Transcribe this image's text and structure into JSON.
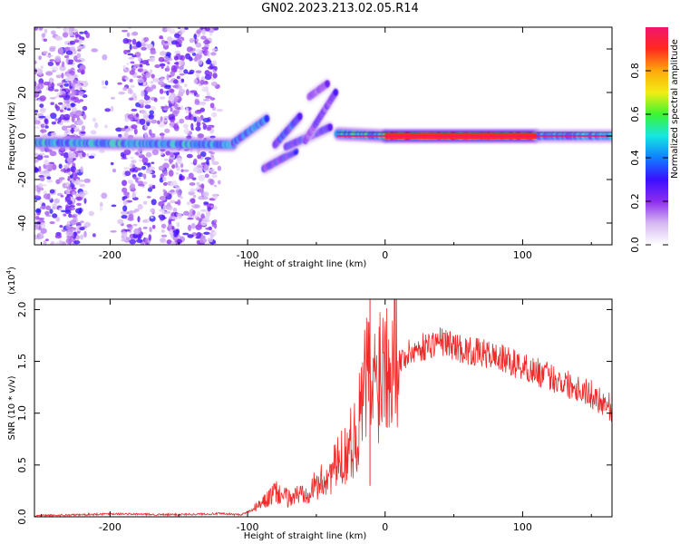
{
  "title": "GN02.2023.213.02.05.R14",
  "chart_data": [
    {
      "type": "heatmap",
      "title": "GN02.2023.213.02.05.R14",
      "xlabel": "Height of straight line (km)",
      "ylabel": "Frequency (Hz)",
      "xlim": [
        -255,
        165
      ],
      "ylim": [
        -50,
        50
      ],
      "x_ticks": [
        -200,
        -100,
        0,
        100
      ],
      "y_ticks": [
        -40,
        -20,
        0,
        20,
        40
      ],
      "colorbar": {
        "label": "Normalized spectral amplitude",
        "range": [
          0,
          1
        ],
        "ticks": [
          0.0,
          0.2,
          0.4,
          0.6,
          0.8
        ],
        "colormap": [
          "#ffffff",
          "#d6b8f2",
          "#8c2cf0",
          "#3a10ff",
          "#0f7fff",
          "#16e7e1",
          "#3cf531",
          "#f2ed14",
          "#ffa80a",
          "#ff2a1d",
          "#f2156d"
        ]
      },
      "ridge_segments": [
        {
          "x": [
            -255,
            -110
          ],
          "y": [
            -3,
            -4
          ],
          "amplitude": 0.55
        },
        {
          "x": [
            -110,
            -86
          ],
          "y": [
            -3,
            8
          ],
          "amplitude": 0.45
        },
        {
          "x": [
            -80,
            -62
          ],
          "y": [
            -4,
            9
          ],
          "amplitude": 0.4
        },
        {
          "x": [
            -88,
            -65
          ],
          "y": [
            -15,
            -7
          ],
          "amplitude": 0.35
        },
        {
          "x": [
            -72,
            -40
          ],
          "y": [
            -5,
            4
          ],
          "amplitude": 0.35
        },
        {
          "x": [
            -58,
            -36
          ],
          "y": [
            -2,
            20
          ],
          "amplitude": 0.3
        },
        {
          "x": [
            -55,
            -42
          ],
          "y": [
            18,
            24
          ],
          "amplitude": 0.25
        },
        {
          "x": [
            -35,
            0
          ],
          "y": [
            1,
            0
          ],
          "amplitude": 0.6
        },
        {
          "x": [
            0,
            110
          ],
          "y": [
            0,
            0
          ],
          "amplitude": 0.95
        },
        {
          "x": [
            110,
            165
          ],
          "y": [
            0,
            0
          ],
          "amplitude": 0.5
        }
      ]
    },
    {
      "type": "line",
      "xlabel": "Height of straight line (km)",
      "ylabel": "SNR (10 * v/v)",
      "y_multiplier": "(x10",
      "y_multiplier_exp": "4",
      "y_multiplier_close": ")",
      "xlim": [
        -255,
        165
      ],
      "ylim": [
        0.0,
        2.1
      ],
      "x_ticks": [
        -200,
        -100,
        0,
        100
      ],
      "y_ticks": [
        "0.0",
        "0.5",
        "1.0",
        "1.5",
        "2.0"
      ],
      "color": "#ee2a2a",
      "series": [
        {
          "x": [
            -255,
            -220,
            -200,
            -160,
            -120,
            -105,
            -90,
            -80,
            -70,
            -60,
            -50,
            -40,
            -30,
            -20,
            -13,
            -10,
            -5,
            0,
            10,
            20,
            30,
            40,
            50,
            60,
            70,
            80,
            90,
            100,
            110,
            120,
            130,
            140,
            150,
            160,
            165
          ],
          "values": [
            0.01,
            0.02,
            0.03,
            0.02,
            0.03,
            0.02,
            0.1,
            0.2,
            0.15,
            0.2,
            0.25,
            0.35,
            0.5,
            0.7,
            1.2,
            1.0,
            1.2,
            1.35,
            1.5,
            1.6,
            1.65,
            1.7,
            1.65,
            1.6,
            1.58,
            1.55,
            1.5,
            1.45,
            1.4,
            1.35,
            1.3,
            1.25,
            1.18,
            1.1,
            1.05
          ]
        }
      ],
      "spike": {
        "x": -11,
        "value": 2.12
      }
    }
  ]
}
